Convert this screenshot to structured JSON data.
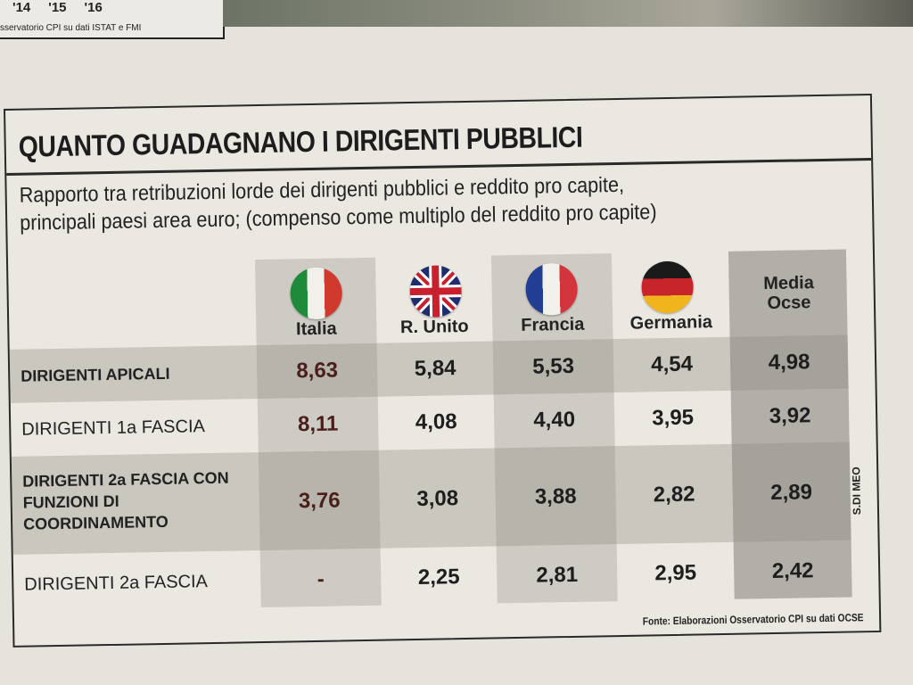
{
  "top_fragment": {
    "ticks": [
      "'14",
      "'15",
      "'16"
    ],
    "source": "sservatorio CPI su dati ISTAT e FMI"
  },
  "title": "QUANTO GUADAGNANO I DIRIGENTI PUBBLICI",
  "subtitle": [
    "Rapporto tra retribuzioni lorde dei dirigenti pubblici e reddito pro capite,",
    "principali paesi area euro; (compenso come multiplo del reddito pro capite)"
  ],
  "columns": [
    {
      "label": "Italia",
      "flag": "italy-flag-icon"
    },
    {
      "label": "R. Unito",
      "flag": "uk-flag-icon"
    },
    {
      "label": "Francia",
      "flag": "france-flag-icon"
    },
    {
      "label": "Germania",
      "flag": "germany-flag-icon"
    },
    {
      "label": "Media Ocse",
      "flag": ""
    }
  ],
  "rows": [
    {
      "label": "DIRIGENTI APICALI",
      "values": [
        "8,63",
        "5,84",
        "5,53",
        "4,54",
        "4,98"
      ]
    },
    {
      "label": "DIRIGENTI 1a  FASCIA",
      "values": [
        "8,11",
        "4,08",
        "4,40",
        "3,95",
        "3,92"
      ]
    },
    {
      "label": "DIRIGENTI 2a  FASCIA CON FUNZIONI DI COORDINAMENTO",
      "values": [
        "3,76",
        "3,08",
        "3,88",
        "2,82",
        "2,89"
      ]
    },
    {
      "label": "DIRIGENTI 2a  FASCIA",
      "values": [
        "-",
        "2,25",
        "2,81",
        "2,95",
        "2,42"
      ]
    }
  ],
  "source": "Fonte: Elaborazioni Osservatorio CPI su dati OCSE",
  "credit": "S.DI MEO",
  "colors": {
    "italy_value": "#4a1f1a",
    "shade_light": "#cfcdc6",
    "shade_dark": "#a9a7a0",
    "paper": "#ebe8e1"
  },
  "chart_data": {
    "type": "table",
    "title": "QUANTO GUADAGNANO I DIRIGENTI PUBBLICI",
    "subtitle": "Rapporto tra retribuzioni lorde dei dirigenti pubblici e reddito pro capite, principali paesi area euro; (compenso come multiplo del reddito pro capite)",
    "categories": [
      "Italia",
      "R. Unito",
      "Francia",
      "Germania",
      "Media Ocse"
    ],
    "series": [
      {
        "name": "DIRIGENTI APICALI",
        "values": [
          8.63,
          5.84,
          5.53,
          4.54,
          4.98
        ]
      },
      {
        "name": "DIRIGENTI 1a  FASCIA",
        "values": [
          8.11,
          4.08,
          4.4,
          3.95,
          3.92
        ]
      },
      {
        "name": "DIRIGENTI 2a  FASCIA CON FUNZIONI DI COORDINAMENTO",
        "values": [
          3.76,
          3.08,
          3.88,
          2.82,
          2.89
        ]
      },
      {
        "name": "DIRIGENTI 2a  FASCIA",
        "values": [
          null,
          2.25,
          2.81,
          2.95,
          2.42
        ]
      }
    ]
  }
}
